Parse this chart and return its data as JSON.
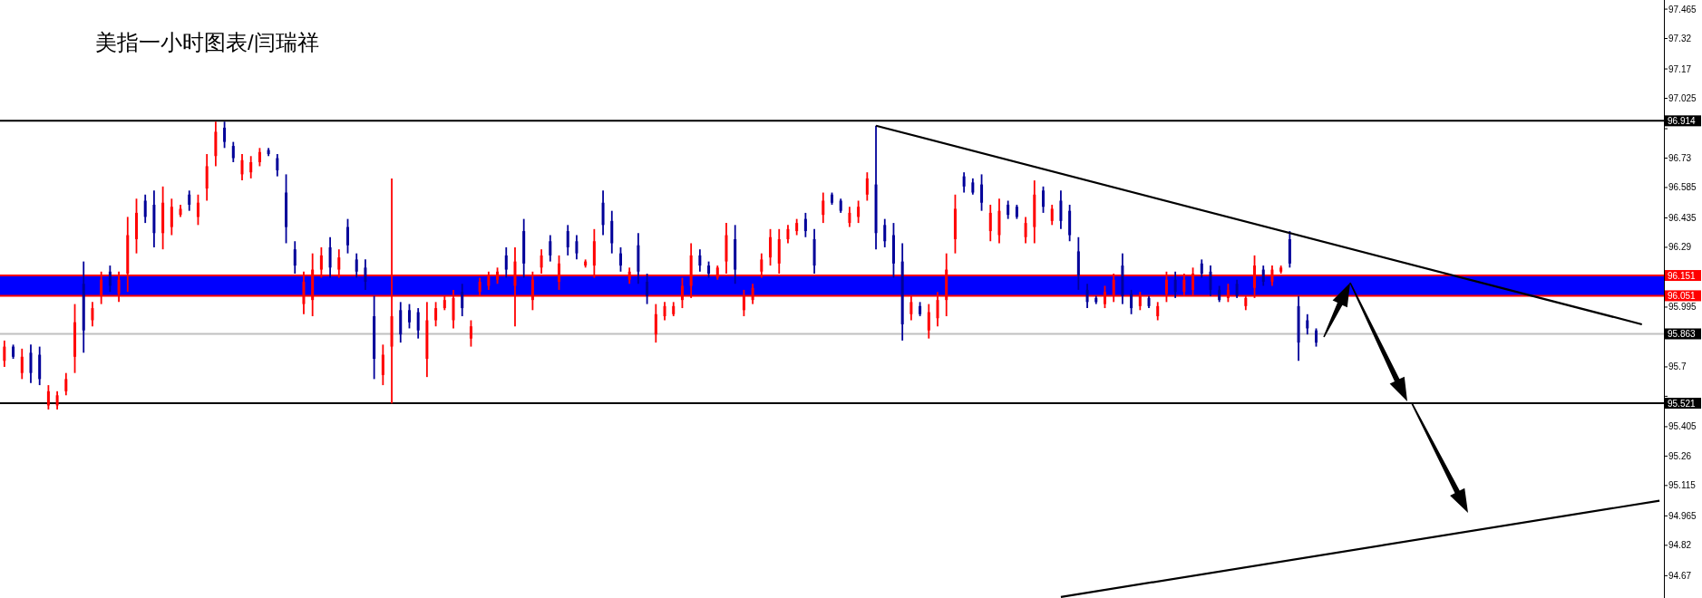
{
  "chart_data": {
    "type": "candlestick",
    "title": "美指一小时图表/闫瑞祥",
    "tick_labels": "y",
    "categories": [
      null,
      null,
      null,
      null,
      null,
      null,
      null,
      null,
      null,
      null,
      null,
      null,
      null,
      null,
      null,
      null,
      null,
      null,
      null,
      null,
      null,
      null,
      null,
      null,
      null,
      null,
      null,
      null,
      null,
      null,
      null,
      null,
      null,
      null,
      null,
      null,
      null,
      null,
      null,
      null,
      null,
      null,
      null,
      null,
      null,
      null,
      null,
      null,
      null,
      null,
      null,
      null,
      null,
      null,
      null,
      null,
      null,
      null,
      null,
      null,
      null,
      null,
      null,
      null,
      null,
      null,
      null,
      null,
      null,
      null,
      null,
      null,
      null,
      null,
      null,
      null,
      null,
      null,
      null,
      null,
      null,
      null,
      null,
      null,
      null,
      null,
      null,
      null,
      null,
      null,
      null,
      null,
      null,
      null,
      null,
      null,
      null,
      null,
      null,
      null,
      null,
      null,
      null,
      null,
      null,
      null,
      null,
      null,
      null,
      null,
      null,
      null,
      null,
      null,
      null,
      null,
      null,
      null,
      null,
      null,
      null,
      null,
      null,
      null,
      null,
      null,
      null,
      null,
      null,
      null,
      null,
      null,
      null,
      null,
      null,
      null,
      null,
      null,
      null,
      null,
      null,
      null,
      null,
      null,
      null,
      null,
      null,
      null,
      null,
      null,
      null,
      null,
      null,
      null,
      null,
      null,
      null,
      null,
      null,
      null,
      null,
      null,
      null,
      null,
      null,
      null,
      null,
      null,
      null,
      null,
      null,
      null,
      null,
      null,
      null,
      null,
      null,
      null,
      null,
      null,
      null,
      null,
      null,
      null,
      null,
      null,
      null,
      null,
      null
    ],
    "ohlc": [
      [
        95.73,
        95.83,
        95.7,
        95.8
      ],
      [
        95.8,
        95.81,
        95.74,
        95.75
      ],
      [
        95.67,
        95.79,
        95.64,
        95.75
      ],
      [
        95.77,
        95.81,
        95.62,
        95.67
      ],
      [
        95.76,
        95.8,
        95.61,
        95.64
      ],
      [
        95.51,
        95.61,
        95.49,
        95.58
      ],
      [
        95.51,
        95.58,
        95.49,
        95.56
      ],
      [
        95.58,
        95.67,
        95.56,
        95.64
      ],
      [
        95.75,
        96.01,
        95.67,
        95.92
      ],
      [
        96.11,
        96.22,
        95.77,
        95.88
      ],
      [
        95.93,
        96.02,
        95.9,
        95.99
      ],
      [
        96.05,
        96.17,
        96.01,
        96.13
      ],
      [
        96.17,
        96.2,
        96.07,
        96.1
      ],
      [
        96.06,
        96.17,
        96.02,
        96.13
      ],
      [
        96.16,
        96.44,
        96.07,
        96.35
      ],
      [
        96.33,
        96.53,
        96.26,
        96.46
      ],
      [
        96.52,
        96.55,
        96.41,
        96.44
      ],
      [
        96.5,
        96.57,
        96.29,
        96.36
      ],
      [
        96.36,
        96.59,
        96.28,
        96.51
      ],
      [
        96.39,
        96.53,
        96.35,
        96.49
      ],
      [
        96.45,
        96.5,
        96.44,
        96.48
      ],
      [
        96.55,
        96.57,
        96.47,
        96.5
      ],
      [
        96.44,
        96.55,
        96.4,
        96.51
      ],
      [
        96.58,
        96.75,
        96.52,
        96.69
      ],
      [
        96.74,
        96.91,
        96.69,
        96.86
      ],
      [
        96.88,
        96.91,
        96.78,
        96.81
      ],
      [
        96.79,
        96.81,
        96.71,
        96.73
      ],
      [
        96.65,
        96.75,
        96.62,
        96.72
      ],
      [
        96.66,
        96.74,
        96.63,
        96.71
      ],
      [
        96.71,
        96.78,
        96.69,
        96.76
      ],
      [
        96.77,
        96.78,
        96.74,
        96.75
      ],
      [
        96.73,
        96.75,
        96.64,
        96.67
      ],
      [
        96.56,
        96.65,
        96.31,
        96.39
      ],
      [
        96.28,
        96.32,
        96.16,
        96.2
      ],
      [
        96.01,
        96.17,
        95.96,
        96.12
      ],
      [
        96.03,
        96.26,
        95.95,
        96.18
      ],
      [
        96.18,
        96.29,
        96.14,
        96.25
      ],
      [
        96.29,
        96.34,
        96.14,
        96.19
      ],
      [
        96.18,
        96.28,
        96.14,
        96.24
      ],
      [
        96.39,
        96.43,
        96.26,
        96.3
      ],
      [
        96.23,
        96.26,
        96.14,
        96.17
      ],
      [
        96.19,
        96.23,
        96.08,
        96.12
      ],
      [
        95.95,
        96.05,
        95.64,
        95.74
      ],
      [
        95.66,
        95.81,
        95.61,
        95.76
      ],
      [
        95.8,
        96.63,
        95.52,
        95.95
      ],
      [
        95.98,
        96.02,
        95.82,
        95.86
      ],
      [
        95.98,
        96.01,
        95.89,
        95.92
      ],
      [
        95.97,
        95.99,
        95.84,
        95.88
      ],
      [
        95.74,
        96.02,
        95.65,
        95.93
      ],
      [
        95.93,
        96.02,
        95.9,
        95.99
      ],
      [
        95.99,
        96.05,
        95.98,
        96.03
      ],
      [
        95.93,
        96.08,
        95.89,
        96.04
      ],
      [
        96.07,
        96.11,
        95.95,
        95.99
      ],
      [
        95.84,
        95.93,
        95.8,
        95.9
      ],
      [
        96.07,
        96.14,
        96.05,
        96.12
      ],
      [
        96.1,
        96.17,
        96.08,
        96.15
      ],
      [
        96.13,
        96.19,
        96.11,
        96.17
      ],
      [
        96.25,
        96.29,
        96.14,
        96.18
      ],
      [
        96.1,
        96.29,
        95.9,
        96.22
      ],
      [
        96.37,
        96.43,
        96.14,
        96.21
      ],
      [
        96.03,
        96.17,
        95.98,
        96.13
      ],
      [
        96.19,
        96.28,
        96.16,
        96.25
      ],
      [
        96.32,
        96.35,
        96.22,
        96.25
      ],
      [
        96.12,
        96.25,
        96.08,
        96.21
      ],
      [
        96.37,
        96.4,
        96.25,
        96.29
      ],
      [
        96.32,
        96.35,
        96.23,
        96.26
      ],
      [
        96.2,
        96.23,
        96.19,
        96.22
      ],
      [
        96.2,
        96.38,
        96.14,
        96.32
      ],
      [
        96.51,
        96.57,
        96.35,
        96.4
      ],
      [
        96.42,
        96.47,
        96.26,
        96.31
      ],
      [
        96.26,
        96.29,
        96.17,
        96.2
      ],
      [
        96.13,
        96.19,
        96.11,
        96.17
      ],
      [
        96.3,
        96.36,
        96.11,
        96.17
      ],
      [
        96.12,
        96.16,
        96.01,
        96.05
      ],
      [
        95.86,
        96.01,
        95.82,
        95.96
      ],
      [
        95.95,
        96.02,
        95.93,
        96.0
      ],
      [
        95.96,
        96.02,
        95.95,
        96.0
      ],
      [
        96.03,
        96.14,
        95.99,
        96.1
      ],
      [
        96.1,
        96.31,
        96.04,
        96.25
      ],
      [
        96.25,
        96.28,
        96.17,
        96.2
      ],
      [
        96.2,
        96.22,
        96.14,
        96.16
      ],
      [
        96.14,
        96.2,
        96.13,
        96.19
      ],
      [
        96.22,
        96.41,
        96.16,
        96.35
      ],
      [
        96.33,
        96.4,
        96.11,
        96.18
      ],
      [
        95.98,
        96.08,
        95.95,
        96.05
      ],
      [
        96.03,
        96.11,
        96.01,
        96.09
      ],
      [
        96.17,
        96.26,
        96.14,
        96.23
      ],
      [
        96.24,
        96.38,
        96.2,
        96.34
      ],
      [
        96.21,
        96.38,
        96.16,
        96.33
      ],
      [
        96.33,
        96.4,
        96.31,
        96.38
      ],
      [
        96.37,
        96.43,
        96.35,
        96.41
      ],
      [
        96.43,
        96.46,
        96.34,
        96.37
      ],
      [
        96.33,
        96.38,
        96.16,
        96.2
      ],
      [
        96.45,
        96.56,
        96.41,
        96.52
      ],
      [
        96.55,
        96.56,
        96.5,
        96.51
      ],
      [
        96.52,
        96.53,
        96.46,
        96.47
      ],
      [
        96.41,
        96.49,
        96.39,
        96.46
      ],
      [
        96.44,
        96.52,
        96.41,
        96.49
      ],
      [
        96.55,
        96.66,
        96.52,
        96.63
      ],
      [
        96.6,
        96.89,
        96.28,
        96.36
      ],
      [
        96.4,
        96.43,
        96.29,
        96.32
      ],
      [
        96.35,
        96.41,
        96.14,
        96.21
      ],
      [
        96.22,
        96.31,
        95.83,
        95.91
      ],
      [
        95.96,
        96.05,
        95.93,
        96.02
      ],
      [
        96.0,
        96.02,
        95.95,
        95.96
      ],
      [
        95.88,
        96.01,
        95.84,
        95.97
      ],
      [
        95.94,
        96.07,
        95.9,
        96.03
      ],
      [
        96.03,
        96.26,
        95.95,
        96.18
      ],
      [
        96.33,
        96.55,
        96.26,
        96.48
      ],
      [
        96.64,
        96.66,
        96.56,
        96.59
      ],
      [
        96.61,
        96.63,
        96.55,
        96.56
      ],
      [
        96.6,
        96.65,
        96.47,
        96.51
      ],
      [
        96.37,
        96.5,
        96.32,
        96.46
      ],
      [
        96.35,
        96.53,
        96.31,
        96.47
      ],
      [
        96.5,
        96.52,
        96.43,
        96.45
      ],
      [
        96.49,
        96.5,
        96.43,
        96.44
      ],
      [
        96.34,
        96.44,
        96.31,
        96.41
      ],
      [
        96.39,
        96.62,
        96.31,
        96.55
      ],
      [
        96.57,
        96.59,
        96.46,
        96.49
      ],
      [
        96.42,
        96.5,
        96.4,
        96.48
      ],
      [
        96.52,
        96.57,
        96.38,
        96.42
      ],
      [
        96.47,
        96.5,
        96.32,
        96.35
      ],
      [
        96.27,
        96.34,
        96.08,
        96.15
      ],
      [
        96.08,
        96.11,
        95.99,
        96.02
      ],
      [
        96.04,
        96.05,
        96.01,
        96.02
      ],
      [
        96.01,
        96.1,
        95.99,
        96.07
      ],
      [
        96.05,
        96.16,
        96.02,
        96.13
      ],
      [
        96.2,
        96.26,
        96.01,
        96.05
      ],
      [
        96.06,
        96.08,
        95.96,
        95.99
      ],
      [
        96.0,
        96.07,
        95.98,
        96.05
      ],
      [
        96.04,
        96.05,
        95.99,
        96.0
      ],
      [
        95.95,
        96.02,
        95.93,
        96.0
      ],
      [
        96.06,
        96.17,
        96.02,
        96.13
      ],
      [
        96.13,
        96.17,
        96.04,
        96.07
      ],
      [
        96.07,
        96.16,
        96.05,
        96.13
      ],
      [
        96.08,
        96.19,
        96.05,
        96.16
      ],
      [
        96.21,
        96.23,
        96.14,
        96.16
      ],
      [
        96.17,
        96.2,
        96.05,
        96.08
      ],
      [
        96.08,
        96.1,
        96.02,
        96.03
      ],
      [
        96.04,
        96.11,
        96.02,
        96.08
      ],
      [
        96.11,
        96.13,
        96.04,
        96.05
      ],
      [
        96.0,
        96.05,
        95.98,
        96.04
      ],
      [
        96.09,
        96.25,
        96.04,
        96.2
      ],
      [
        96.18,
        96.2,
        96.1,
        96.12
      ],
      [
        96.12,
        96.2,
        96.1,
        96.18
      ],
      [
        96.17,
        96.2,
        96.16,
        96.19
      ],
      [
        96.33,
        96.37,
        96.19,
        96.21
      ],
      [
        96.0,
        96.05,
        95.73,
        95.82
      ],
      [
        95.93,
        95.96,
        95.86,
        95.89
      ],
      [
        95.88,
        95.89,
        95.8,
        95.82
      ],
      null,
      null,
      null,
      null,
      null,
      null,
      null,
      null,
      null,
      null,
      null,
      null,
      null,
      null,
      null,
      null,
      null,
      null,
      null,
      null,
      null,
      null,
      null,
      null,
      null,
      null,
      null,
      null,
      null,
      null,
      null,
      null,
      null,
      null,
      null,
      null,
      null,
      null,
      null
    ],
    "colors": [
      "#ff0000",
      "#000099",
      "#ff0000",
      "#000099",
      "#000099",
      "#ff0000",
      "#ff0000",
      "#ff0000",
      "#ff0000",
      "#000099",
      "#ff0000",
      "#ff0000",
      "#000099",
      "#ff0000",
      "#ff0000",
      "#ff0000",
      "#000099",
      "#000099",
      "#ff0000",
      "#ff0000",
      "#ff0000",
      "#000099",
      "#ff0000",
      "#ff0000",
      "#ff0000",
      "#000099",
      "#000099",
      "#ff0000",
      "#ff0000",
      "#ff0000",
      "#000099",
      "#000099",
      "#000099",
      "#000099",
      "#ff0000",
      "#ff0000",
      "#ff0000",
      "#000099",
      "#ff0000",
      "#000099",
      "#000099",
      "#000099",
      "#000099",
      "#ff0000",
      "#ff0000",
      "#000099",
      "#000099",
      "#000099",
      "#ff0000",
      "#ff0000",
      "#ff0000",
      "#ff0000",
      "#000099",
      "#ff0000",
      "#ff0000",
      "#ff0000",
      "#ff0000",
      "#000099",
      "#ff0000",
      "#000099",
      "#ff0000",
      "#ff0000",
      "#000099",
      "#ff0000",
      "#000099",
      "#000099",
      "#ff0000",
      "#ff0000",
      "#000099",
      "#000099",
      "#000099",
      "#ff0000",
      "#000099",
      "#000099",
      "#ff0000",
      "#ff0000",
      "#ff0000",
      "#ff0000",
      "#ff0000",
      "#000099",
      "#000099",
      "#ff0000",
      "#ff0000",
      "#000099",
      "#ff0000",
      "#ff0000",
      "#ff0000",
      "#ff0000",
      "#ff0000",
      "#ff0000",
      "#ff0000",
      "#000099",
      "#000099",
      "#ff0000",
      "#000099",
      "#000099",
      "#ff0000",
      "#ff0000",
      "#ff0000",
      "#000099",
      "#000099",
      "#000099",
      "#000099",
      "#ff0000",
      "#000099",
      "#ff0000",
      "#ff0000",
      "#ff0000",
      "#ff0000",
      "#000099",
      "#000099",
      "#000099",
      "#ff0000",
      "#ff0000",
      "#000099",
      "#000099",
      "#ff0000",
      "#ff0000",
      "#000099",
      "#ff0000",
      "#000099",
      "#000099",
      "#000099",
      "#000099",
      "#000099",
      "#ff0000",
      "#ff0000",
      "#000099",
      "#000099",
      "#ff0000",
      "#000099",
      "#ff0000",
      "#ff0000",
      "#000099",
      "#ff0000",
      "#ff0000",
      "#000099",
      "#000099",
      "#000099",
      "#ff0000",
      "#000099",
      "#ff0000",
      "#ff0000",
      "#000099",
      "#ff0000",
      "#ff0000",
      "#000099",
      "#000099",
      "#000099",
      "#000099",
      null,
      null,
      null,
      null,
      null,
      null,
      null,
      null,
      null,
      null,
      null,
      null,
      null,
      null,
      null,
      null,
      null,
      null,
      null,
      null,
      null,
      null,
      null,
      null,
      null,
      null,
      null,
      null,
      null,
      null,
      null,
      null,
      null,
      null,
      null,
      null,
      null,
      null,
      null
    ],
    "series": [
      {
        "type": "line",
        "values": [
          null,
          null,
          null,
          null,
          null,
          null,
          null,
          null,
          null,
          null,
          null,
          null,
          null,
          null,
          null,
          null,
          null,
          null,
          null,
          null,
          null,
          null,
          null,
          null,
          null,
          null,
          null,
          null,
          null,
          null,
          null,
          null,
          null,
          null,
          null,
          null,
          null,
          null,
          null,
          null,
          null,
          null,
          null,
          null,
          null,
          null,
          null,
          null,
          null,
          null,
          null,
          null,
          null,
          null,
          null,
          null,
          null,
          null,
          null,
          null,
          null,
          null,
          null,
          null,
          null,
          null,
          null,
          null,
          null,
          null,
          null,
          null,
          null,
          null,
          null,
          null,
          null,
          null,
          null,
          null,
          null,
          null,
          null,
          null,
          null,
          null,
          null,
          null,
          null,
          null,
          null,
          null,
          null,
          null,
          null,
          null,
          null,
          null,
          null,
          96.89,
          null,
          null,
          null,
          null,
          null,
          null,
          null,
          null,
          null,
          null,
          null,
          null,
          null,
          null,
          null,
          null,
          null,
          null,
          null,
          null,
          null,
          null,
          null,
          null,
          null,
          null,
          null,
          null,
          null,
          null,
          null,
          null,
          null,
          null,
          null,
          null,
          null,
          null,
          null,
          null,
          null,
          null,
          null,
          null,
          null,
          null,
          null,
          null,
          null,
          null,
          null,
          null,
          null,
          null,
          null,
          null,
          null,
          null,
          null,
          null,
          null,
          null,
          null,
          null,
          null,
          null,
          null,
          null,
          null,
          null,
          null,
          null,
          null,
          null,
          null,
          null,
          null,
          null,
          null,
          null,
          null,
          null,
          null,
          null,
          null,
          null,
          95.91,
          null,
          null
        ],
        "color": "#000000"
      },
      {
        "type": "line",
        "values": [
          null,
          null,
          null,
          null,
          null,
          null,
          null,
          null,
          null,
          null,
          null,
          null,
          null,
          null,
          null,
          null,
          null,
          null,
          null,
          null,
          null,
          null,
          null,
          null,
          null,
          null,
          null,
          null,
          null,
          null,
          null,
          null,
          null,
          null,
          null,
          null,
          null,
          null,
          null,
          null,
          null,
          null,
          null,
          null,
          null,
          null,
          null,
          null,
          null,
          null,
          null,
          null,
          null,
          null,
          null,
          null,
          null,
          null,
          null,
          null,
          null,
          null,
          null,
          null,
          null,
          null,
          null,
          null,
          null,
          null,
          null,
          null,
          null,
          null,
          null,
          null,
          null,
          null,
          null,
          null,
          null,
          null,
          null,
          null,
          null,
          null,
          null,
          null,
          null,
          null,
          null,
          null,
          null,
          null,
          null,
          null,
          null,
          null,
          null,
          null,
          null,
          null,
          null,
          null,
          null,
          null,
          null,
          null,
          null,
          null,
          null,
          null,
          null,
          null,
          null,
          null,
          null,
          null,
          null,
          null,
          94.565,
          null,
          null,
          null,
          null,
          null,
          null,
          null,
          null,
          null,
          null,
          null,
          null,
          null,
          null,
          null,
          null,
          null,
          null,
          null,
          null,
          null,
          null,
          null,
          null,
          null,
          null,
          null,
          null,
          null,
          null,
          null,
          null,
          null,
          null,
          null,
          null,
          null,
          null,
          null,
          null,
          null,
          null,
          null,
          null,
          null,
          null,
          null,
          null,
          null,
          null,
          null,
          null,
          null,
          null,
          null,
          null,
          null,
          null,
          null,
          null,
          null,
          null,
          null,
          null,
          null,
          null,
          null,
          95.04
        ],
        "color": "#000000"
      }
    ],
    "bands": [
      {
        "axis": "y",
        "from": 96.051,
        "to": 96.151,
        "color": "#0000ff"
      }
    ],
    "ref_lines": [
      {
        "axis": "y",
        "value": 96.914,
        "label": "96.914",
        "color": "#000000"
      },
      {
        "axis": "y",
        "value": 96.151,
        "label": "96.151",
        "color": "#ff0000"
      },
      {
        "axis": "y",
        "value": 96.051,
        "label": "96.051",
        "color": "#ff0000"
      },
      {
        "axis": "y",
        "value": 95.863,
        "label": "95.863",
        "color": "#c0c0c0"
      },
      {
        "axis": "y",
        "value": 95.521,
        "label": "95.521",
        "color": "#000000"
      }
    ],
    "ylim": [
      94.56,
      97.51
    ],
    "yticks": [
      97.465,
      97.32,
      97.17,
      97.025,
      {
        "value": 96.875,
        "label": null
      },
      96.73,
      96.585,
      96.435,
      96.29,
      95.995,
      95.7,
      {
        "value": 95.555,
        "label": null
      },
      95.405,
      95.26,
      95.115,
      94.965,
      94.82,
      94.67
    ]
  }
}
